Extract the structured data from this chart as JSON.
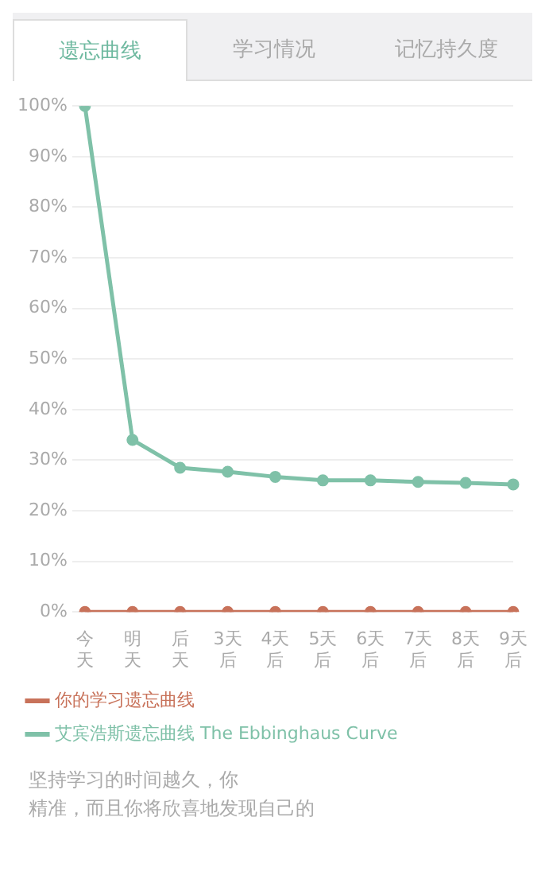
{
  "chart_data": {
    "type": "line",
    "title": "遗忘曲线",
    "categories": [
      "今天",
      "明天",
      "后天",
      "3天后",
      "4天后",
      "5天后",
      "6天后",
      "7天后",
      "8天后",
      "9天后"
    ],
    "series": [
      {
        "name": "你的学习遗忘曲线",
        "color": "#c8725a",
        "values": [
          0,
          0,
          0,
          0,
          0,
          0,
          0,
          0,
          0,
          0
        ]
      },
      {
        "name": "艾宾浩斯遗忘曲线 The Ebbinghaus Curve",
        "color": "#7fc1a8",
        "values": [
          100,
          34,
          28.5,
          27.7,
          26.7,
          26,
          26,
          25.7,
          25.5,
          25.2
        ]
      }
    ],
    "ylim": [
      0,
      100
    ],
    "yticks": [
      {
        "value": 0,
        "label": "0%"
      },
      {
        "value": 10,
        "label": "10%"
      },
      {
        "value": 20,
        "label": "20%"
      },
      {
        "value": 30,
        "label": "30%"
      },
      {
        "value": 40,
        "label": "40%"
      },
      {
        "value": 50,
        "label": "50%"
      },
      {
        "value": 60,
        "label": "60%"
      },
      {
        "value": 70,
        "label": "70%"
      },
      {
        "value": 80,
        "label": "80%"
      },
      {
        "value": 90,
        "label": "90%"
      },
      {
        "value": 100,
        "label": "100%"
      }
    ],
    "grid": "y",
    "legend": "bottom",
    "marker": "circle",
    "line_style": "solid",
    "annotations": [
      "学习情况",
      "记忆持久度",
      "坚持学习的时间越久，你",
      "精准，而且你将欣喜地发现自己的"
    ]
  }
}
